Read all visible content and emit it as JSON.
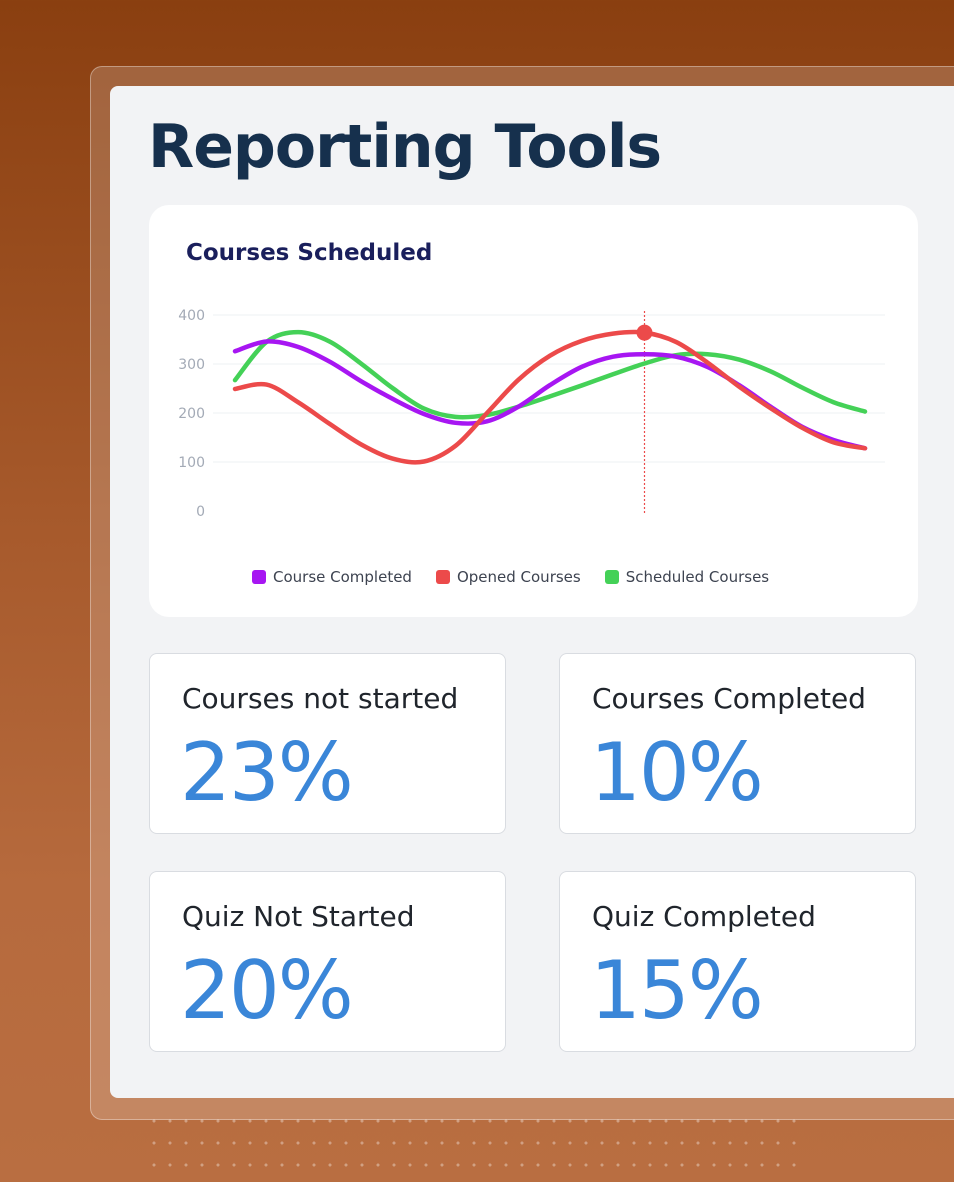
{
  "page": {
    "title": "Reporting Tools"
  },
  "colors": {
    "course_completed": "#a716f2",
    "opened_courses": "#ec4a4a",
    "scheduled_courses": "#44d157",
    "stat_value": "#3a86d8",
    "title": "#16304d"
  },
  "chart_data": {
    "type": "line",
    "title": "Courses Scheduled",
    "xlabel": "",
    "ylabel": "",
    "ylim": [
      0,
      400
    ],
    "yticks": [
      0,
      100,
      200,
      300,
      400
    ],
    "grid": true,
    "legend_position": "bottom",
    "x": [
      0,
      1,
      2,
      3,
      4,
      5,
      6,
      7,
      8,
      9,
      10,
      11,
      12,
      13,
      14,
      15,
      16,
      17,
      18,
      19,
      20
    ],
    "highlight_index": 13,
    "series": [
      {
        "name": "Course Completed",
        "color": "#a716f2",
        "values": [
          326,
          346,
          335,
          305,
          265,
          229,
          198,
          180,
          183,
          213,
          257,
          294,
          315,
          320,
          315,
          294,
          257,
          213,
          172,
          145,
          128
        ]
      },
      {
        "name": "Opened Courses",
        "color": "#ec4a4a",
        "values": [
          249,
          258,
          222,
          178,
          136,
          107,
          101,
          133,
          200,
          268,
          317,
          347,
          362,
          364,
          345,
          303,
          254,
          210,
          170,
          140,
          128
        ]
      },
      {
        "name": "Scheduled Courses",
        "color": "#44d157",
        "values": [
          267,
          345,
          365,
          346,
          301,
          251,
          209,
          192,
          196,
          213,
          234,
          256,
          279,
          301,
          318,
          320,
          309,
          285,
          252,
          222,
          203
        ]
      }
    ]
  },
  "stats": [
    {
      "label": "Courses not started",
      "value": "23%"
    },
    {
      "label": "Courses Completed",
      "value": "10%"
    },
    {
      "label": "Quiz Not Started",
      "value": "20%"
    },
    {
      "label": "Quiz Completed",
      "value": "15%"
    }
  ]
}
